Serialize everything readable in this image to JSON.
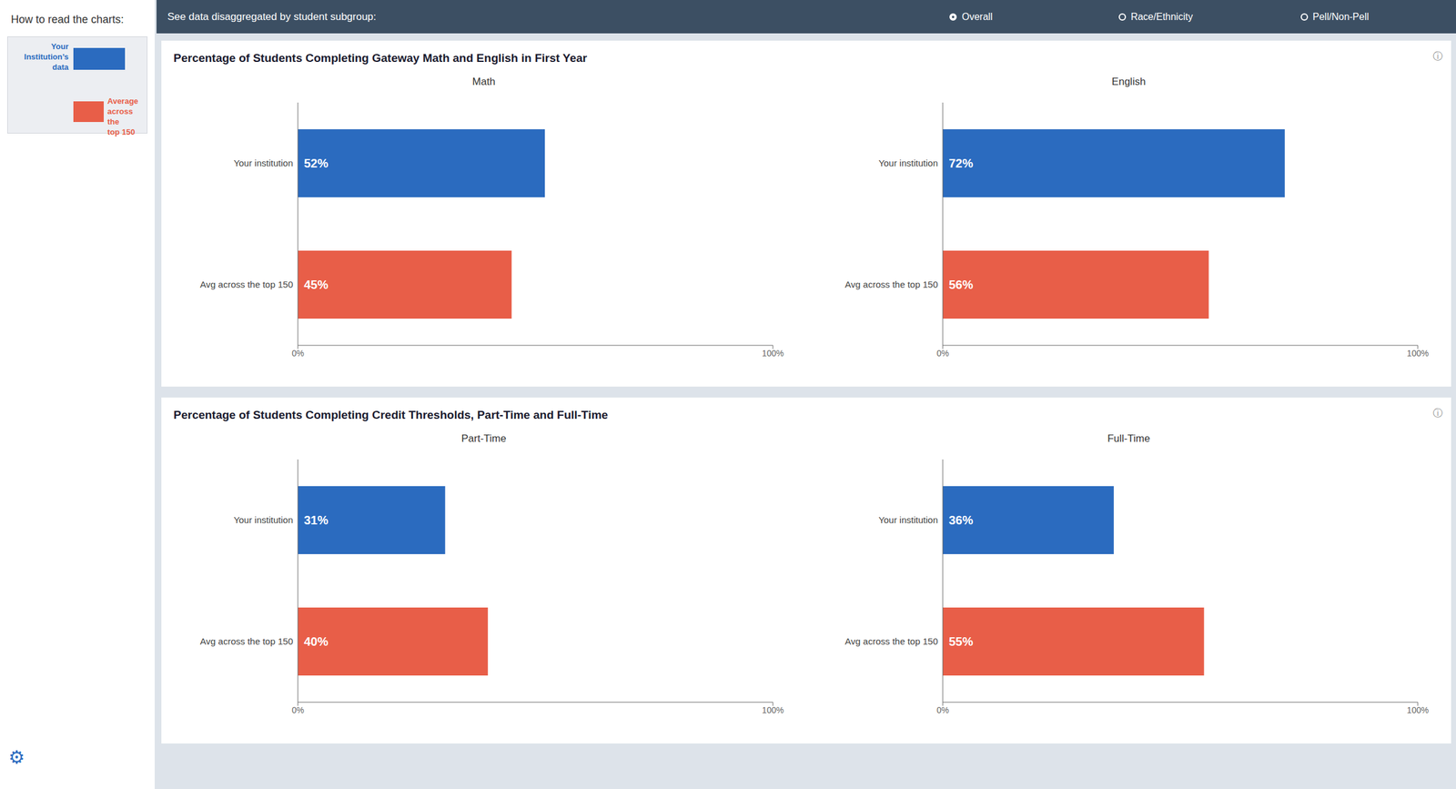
{
  "chart_data": [
    {
      "type": "bar",
      "title": "Percentage of Students Completing Gateway Math and English in First Year",
      "subtitle": "Math",
      "orientation": "horizontal",
      "categories": [
        "Your institution",
        "Avg across the top 150"
      ],
      "values": [
        52,
        45
      ],
      "value_labels": [
        "52%",
        "45%"
      ],
      "colors": [
        "#2b6bbf",
        "#e85e48"
      ],
      "xlim": [
        0,
        100
      ],
      "xticks": [
        {
          "value": 0,
          "label": "0%"
        },
        {
          "value": 100,
          "label": "100%"
        }
      ],
      "data_labels": true,
      "grid": false,
      "annotations": [
        "How to read the charts:",
        "Your\nInstitution’s\ndata",
        "Average\nacross the\ntop 150",
        "⚙",
        "See data disaggregated by student subgroup:",
        "Overall",
        "Race/Ethnicity",
        "Pell/Non-Pell",
        "ⓘ"
      ]
    },
    {
      "type": "bar",
      "subtitle": "English",
      "orientation": "horizontal",
      "categories": [
        "Your institution",
        "Avg across the top 150"
      ],
      "values": [
        72,
        56
      ],
      "value_labels": [
        "72%",
        "56%"
      ],
      "colors": [
        "#2b6bbf",
        "#e85e48"
      ],
      "xlim": [
        0,
        100
      ],
      "xticks": [
        {
          "value": 0,
          "label": "0%"
        },
        {
          "value": 100,
          "label": "100%"
        }
      ],
      "data_labels": true,
      "grid": false
    },
    {
      "type": "bar",
      "title": "Percentage of Students Completing Credit Thresholds, Part-Time and Full-Time",
      "subtitle": "Part-Time",
      "orientation": "horizontal",
      "categories": [
        "Your institution",
        "Avg across the top 150"
      ],
      "values": [
        31,
        40
      ],
      "value_labels": [
        "31%",
        "40%"
      ],
      "colors": [
        "#2b6bbf",
        "#e85e48"
      ],
      "xlim": [
        0,
        100
      ],
      "xticks": [
        {
          "value": 0,
          "label": "0%"
        },
        {
          "value": 100,
          "label": "100%"
        }
      ],
      "data_labels": true,
      "grid": false,
      "annotations": [
        "ⓘ"
      ]
    },
    {
      "type": "bar",
      "subtitle": "Full-Time",
      "orientation": "horizontal",
      "categories": [
        "Your institution",
        "Avg across the top 150"
      ],
      "values": [
        36,
        55
      ],
      "value_labels": [
        "36%",
        "55%"
      ],
      "colors": [
        "#2b6bbf",
        "#e85e48"
      ],
      "xlim": [
        0,
        100
      ],
      "xticks": [
        {
          "value": 0,
          "label": "0%"
        },
        {
          "value": 100,
          "label": "100%"
        }
      ],
      "data_labels": true,
      "grid": false
    }
  ]
}
